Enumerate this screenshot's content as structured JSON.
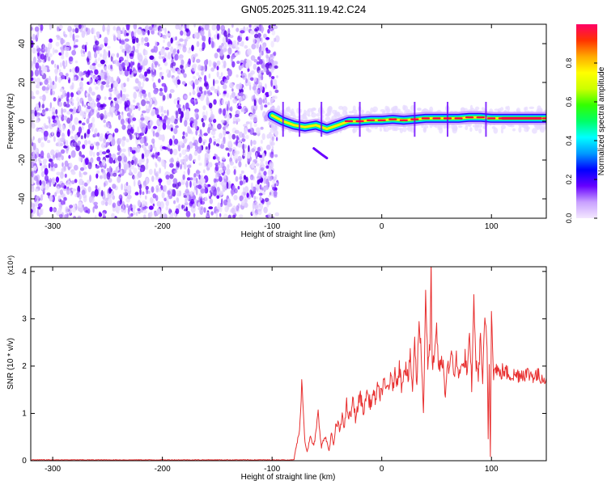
{
  "title": "GN05.2025.311.19.42.C24",
  "chart_data": [
    {
      "type": "heatmap",
      "xlabel": "Height of straight line (km)",
      "ylabel": "Frequency (Hz)",
      "xlim": [
        -320,
        150
      ],
      "ylim": [
        -50,
        50
      ],
      "x_ticks": [
        -300,
        -200,
        -100,
        0,
        100
      ],
      "y_ticks": [
        -40,
        -20,
        0,
        20,
        40
      ],
      "noise_region_x": [
        -320,
        -95
      ],
      "ridge": [
        {
          "x": -100,
          "y": 3
        },
        {
          "x": -90,
          "y": 0
        },
        {
          "x": -80,
          "y": -2
        },
        {
          "x": -70,
          "y": -3
        },
        {
          "x": -60,
          "y": -2
        },
        {
          "x": -50,
          "y": -4
        },
        {
          "x": -40,
          "y": -2
        },
        {
          "x": -30,
          "y": 0
        },
        {
          "x": -20,
          "y": 0
        },
        {
          "x": -10,
          "y": 0.5
        },
        {
          "x": 0,
          "y": 0.5
        },
        {
          "x": 10,
          "y": 1
        },
        {
          "x": 20,
          "y": 0.5
        },
        {
          "x": 30,
          "y": 1
        },
        {
          "x": 40,
          "y": 1.5
        },
        {
          "x": 50,
          "y": 1.5
        },
        {
          "x": 60,
          "y": 1.5
        },
        {
          "x": 70,
          "y": 1.5
        },
        {
          "x": 80,
          "y": 2
        },
        {
          "x": 90,
          "y": 2
        },
        {
          "x": 100,
          "y": 1.5
        },
        {
          "x": 110,
          "y": 1.5
        },
        {
          "x": 120,
          "y": 1.5
        },
        {
          "x": 130,
          "y": 1.5
        },
        {
          "x": 150,
          "y": 1.5
        }
      ],
      "side_streak": [
        {
          "x": -62,
          "y": -14
        },
        {
          "x": -55,
          "y": -17
        },
        {
          "x": -50,
          "y": -19
        }
      ],
      "colorbar": {
        "label": "Normalized spectral amplitude",
        "min": 0.0,
        "max": 1.0,
        "ticks": [
          "0.0",
          "0.2",
          "0.4",
          "0.6",
          "0.8"
        ],
        "tick_values": [
          0.0,
          0.2,
          0.4,
          0.6,
          0.8
        ],
        "colors": [
          "#f4e8ff",
          "#c8a0ff",
          "#6600ff",
          "#0000ff",
          "#0099ff",
          "#00ffff",
          "#00ff66",
          "#33ff00",
          "#ccff00",
          "#ffff00",
          "#ffaa00",
          "#ff3300",
          "#ff0066"
        ]
      }
    },
    {
      "type": "line",
      "xlabel": "Height of straight line (km)",
      "ylabel": "SNR (10 * v/v)",
      "y_multiplier": "(x10⁴)",
      "xlim": [
        -320,
        150
      ],
      "ylim": [
        0,
        4.1
      ],
      "x_ticks": [
        -300,
        -200,
        -100,
        0,
        100
      ],
      "y_ticks": [
        0,
        1,
        2,
        3,
        4
      ],
      "color": "#e83030",
      "series": [
        {
          "x": [
            -320,
            -100,
            -80,
            -78,
            -75,
            -73,
            -70,
            -68,
            -65,
            -62,
            -60,
            -58,
            -55,
            -52,
            -50,
            -48,
            -46,
            -44,
            -42,
            -40,
            -38,
            -36,
            -34,
            -32,
            -30,
            -28,
            -26,
            -24,
            -22,
            -20,
            -18,
            -16,
            -14,
            -12,
            -10,
            -8,
            -6,
            -4,
            -2,
            0,
            2,
            4,
            6,
            8,
            10,
            12,
            14,
            16,
            18,
            20,
            22,
            24,
            26,
            28,
            30,
            32,
            34,
            36,
            38,
            40,
            42,
            44,
            45,
            46,
            48,
            50,
            52,
            54,
            56,
            58,
            60,
            62,
            64,
            66,
            68,
            70,
            72,
            74,
            76,
            78,
            80,
            82,
            84,
            86,
            88,
            90,
            92,
            94,
            96,
            97,
            98,
            99,
            100,
            102,
            104,
            106,
            108,
            110,
            115,
            120,
            130,
            140,
            150
          ],
          "y": [
            0.01,
            0.01,
            0.04,
            0.3,
            0.6,
            1.7,
            0.4,
            0.2,
            0.5,
            0.3,
            0.6,
            1.0,
            0.3,
            0.5,
            0.4,
            0.2,
            0.6,
            0.3,
            0.7,
            0.8,
            0.6,
            1.0,
            0.7,
            1.2,
            0.9,
            1.0,
            1.3,
            0.9,
            1.1,
            1.4,
            1.2,
            1.0,
            1.5,
            1.3,
            1.2,
            1.4,
            1.3,
            1.5,
            1.4,
            1.5,
            1.6,
            1.5,
            1.6,
            1.7,
            1.6,
            1.8,
            1.7,
            2.0,
            1.6,
            1.9,
            2.0,
            1.7,
            2.2,
            1.5,
            2.5,
            1.6,
            3.0,
            2.3,
            1.0,
            3.6,
            2.0,
            2.4,
            4.1,
            2.0,
            2.1,
            2.8,
            1.9,
            2.1,
            2.0,
            1.4,
            2.1,
            1.9,
            2.3,
            1.8,
            2.2,
            1.7,
            2.1,
            1.9,
            2.2,
            1.8,
            2.6,
            1.6,
            3.4,
            2.0,
            1.8,
            2.6,
            1.7,
            3.0,
            2.4,
            0.5,
            2.0,
            0.1,
            3.3,
            1.8,
            2.0,
            1.9,
            1.8,
            1.9,
            1.85,
            1.8,
            1.85,
            1.8,
            1.75
          ]
        }
      ]
    }
  ]
}
